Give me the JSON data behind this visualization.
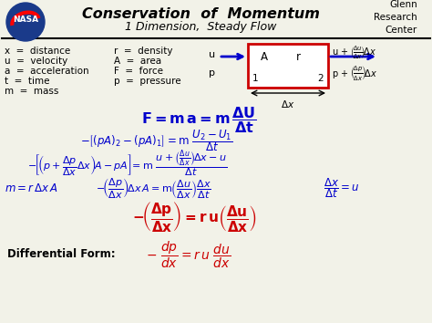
{
  "title": "Conservation  of  Momentum",
  "subtitle": "1 Dimension,  Steady Flow",
  "top_right": "Glenn\nResearch\nCenter",
  "bg_color": "#f2f2e8",
  "blue": "#0000cc",
  "red": "#cc0000",
  "black": "#000000",
  "white": "#ffffff",
  "vars_left": [
    "x  =  distance",
    "u  =  velocity",
    "a  =  acceleration",
    "t  =  time",
    "m  =  mass"
  ],
  "vars_right": [
    "r  =  density",
    "A  =  area",
    "F  =  force",
    "p  =  pressure"
  ]
}
